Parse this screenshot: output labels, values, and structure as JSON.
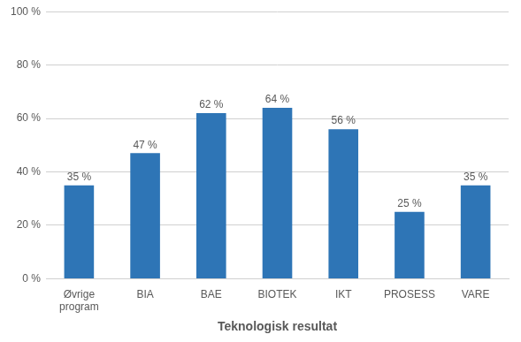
{
  "chart_data": {
    "type": "bar",
    "categories": [
      "Øvrige\nprogram",
      "BIA",
      "BAE",
      "BIOTEK",
      "IKT",
      "PROSESS",
      "VARE"
    ],
    "values": [
      35,
      47,
      62,
      64,
      56,
      25,
      35
    ],
    "value_labels": [
      "35 %",
      "47 %",
      "62 %",
      "64 %",
      "56 %",
      "25 %",
      "35 %"
    ],
    "color": "#2E75B6",
    "xlabel": "Teknologisk resultat",
    "ylim": [
      0,
      100
    ],
    "yticks": [
      {
        "value": 0,
        "label": "0 %"
      },
      {
        "value": 20,
        "label": "20 %"
      },
      {
        "value": 40,
        "label": "40 %"
      },
      {
        "value": 60,
        "label": "60 %"
      },
      {
        "value": 80,
        "label": "80 %"
      },
      {
        "value": 100,
        "label": "100 %"
      }
    ],
    "grid": true,
    "data_labels": true
  }
}
